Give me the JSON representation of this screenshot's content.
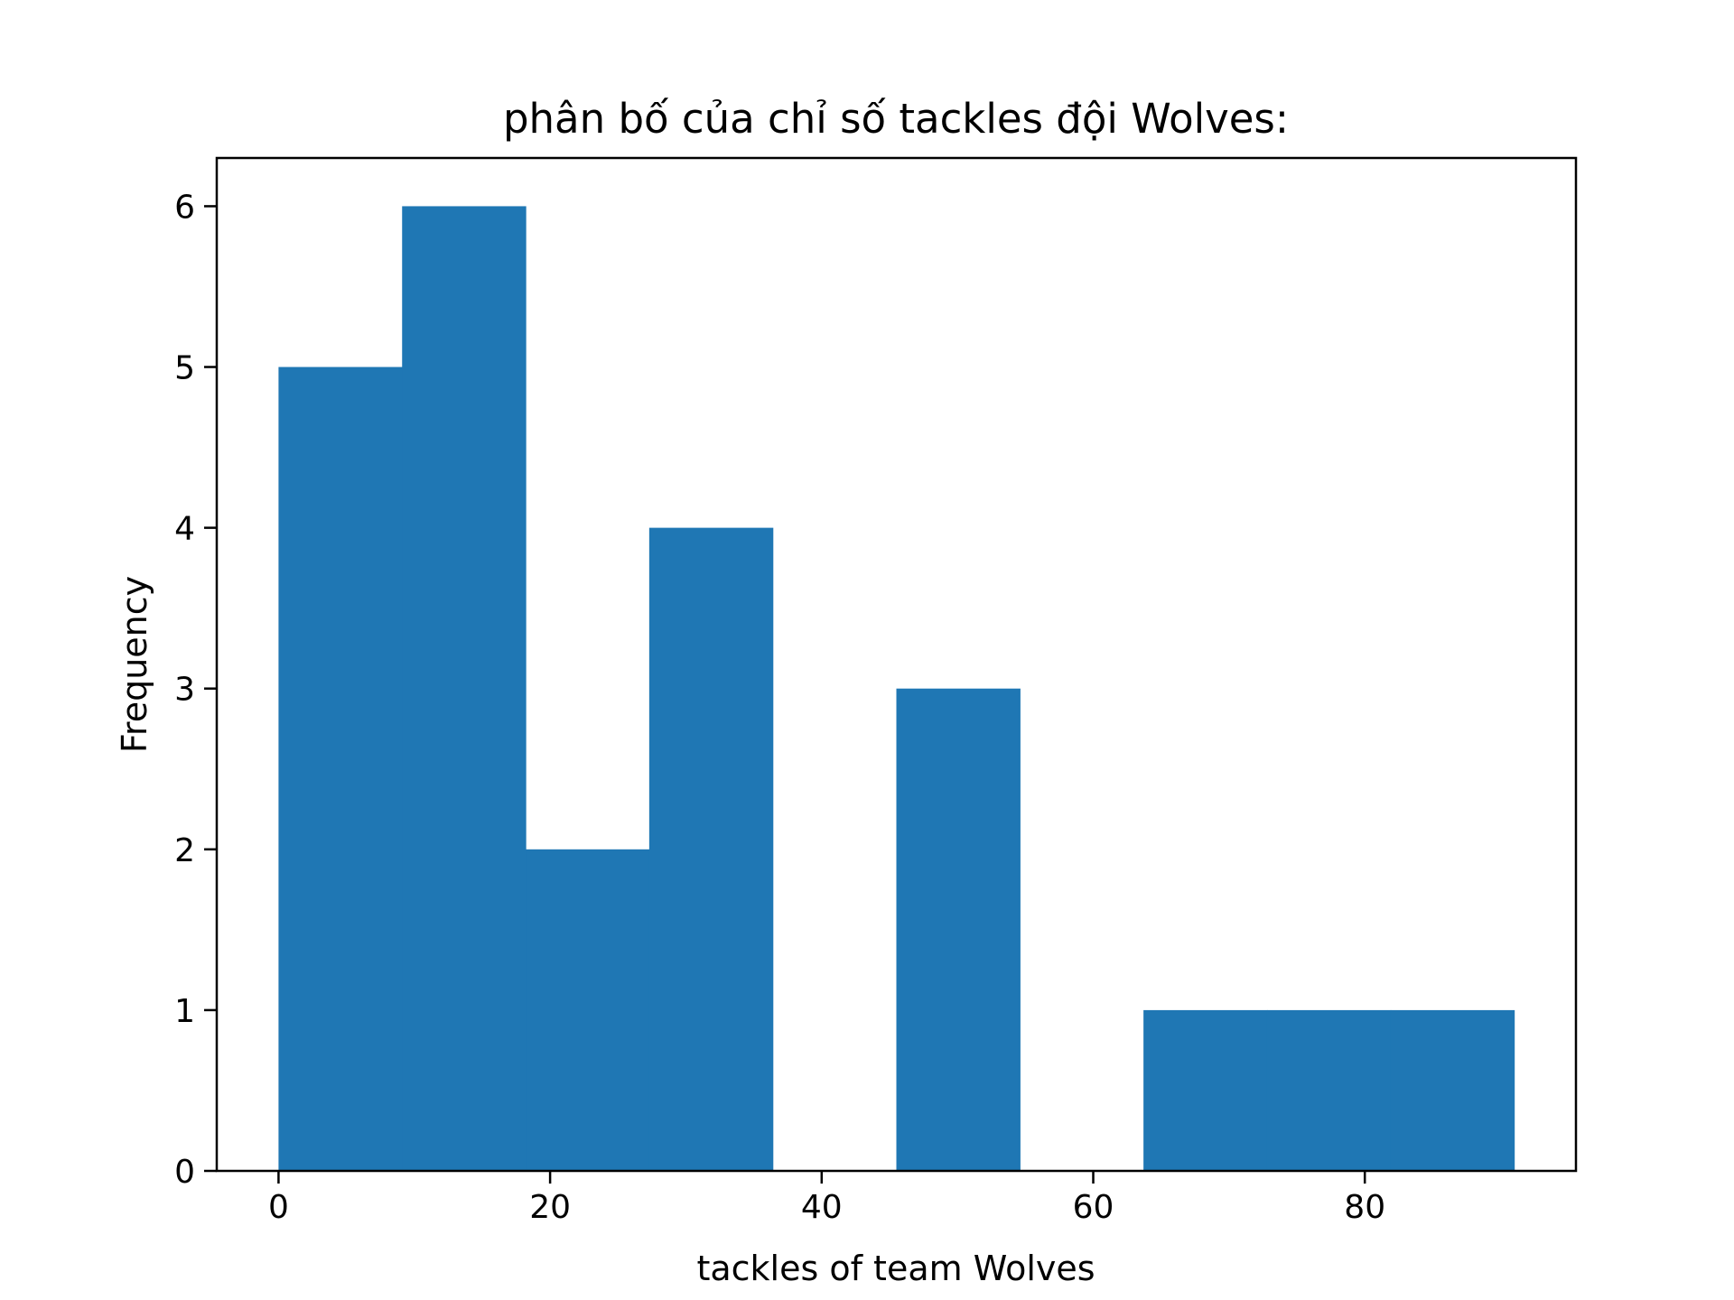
{
  "chart_data": {
    "type": "bar",
    "title": "phân bố của chỉ số tackles đội Wolves:",
    "xlabel": "tackles of team Wolves",
    "ylabel": "Frequency",
    "bin_edges": [
      0,
      9.1,
      18.2,
      27.3,
      36.4,
      45.5,
      54.6,
      63.7,
      72.8,
      81.9,
      91.0
    ],
    "values": [
      5,
      6,
      2,
      4,
      0,
      3,
      0,
      1,
      1,
      1
    ],
    "xlim": [
      -4.55,
      95.55
    ],
    "ylim": [
      0,
      6.3
    ],
    "xticks": [
      0,
      20,
      40,
      60,
      80
    ],
    "yticks": [
      0,
      1,
      2,
      3,
      4,
      5,
      6
    ],
    "grid": false,
    "bar_color": "#1f77b4"
  }
}
